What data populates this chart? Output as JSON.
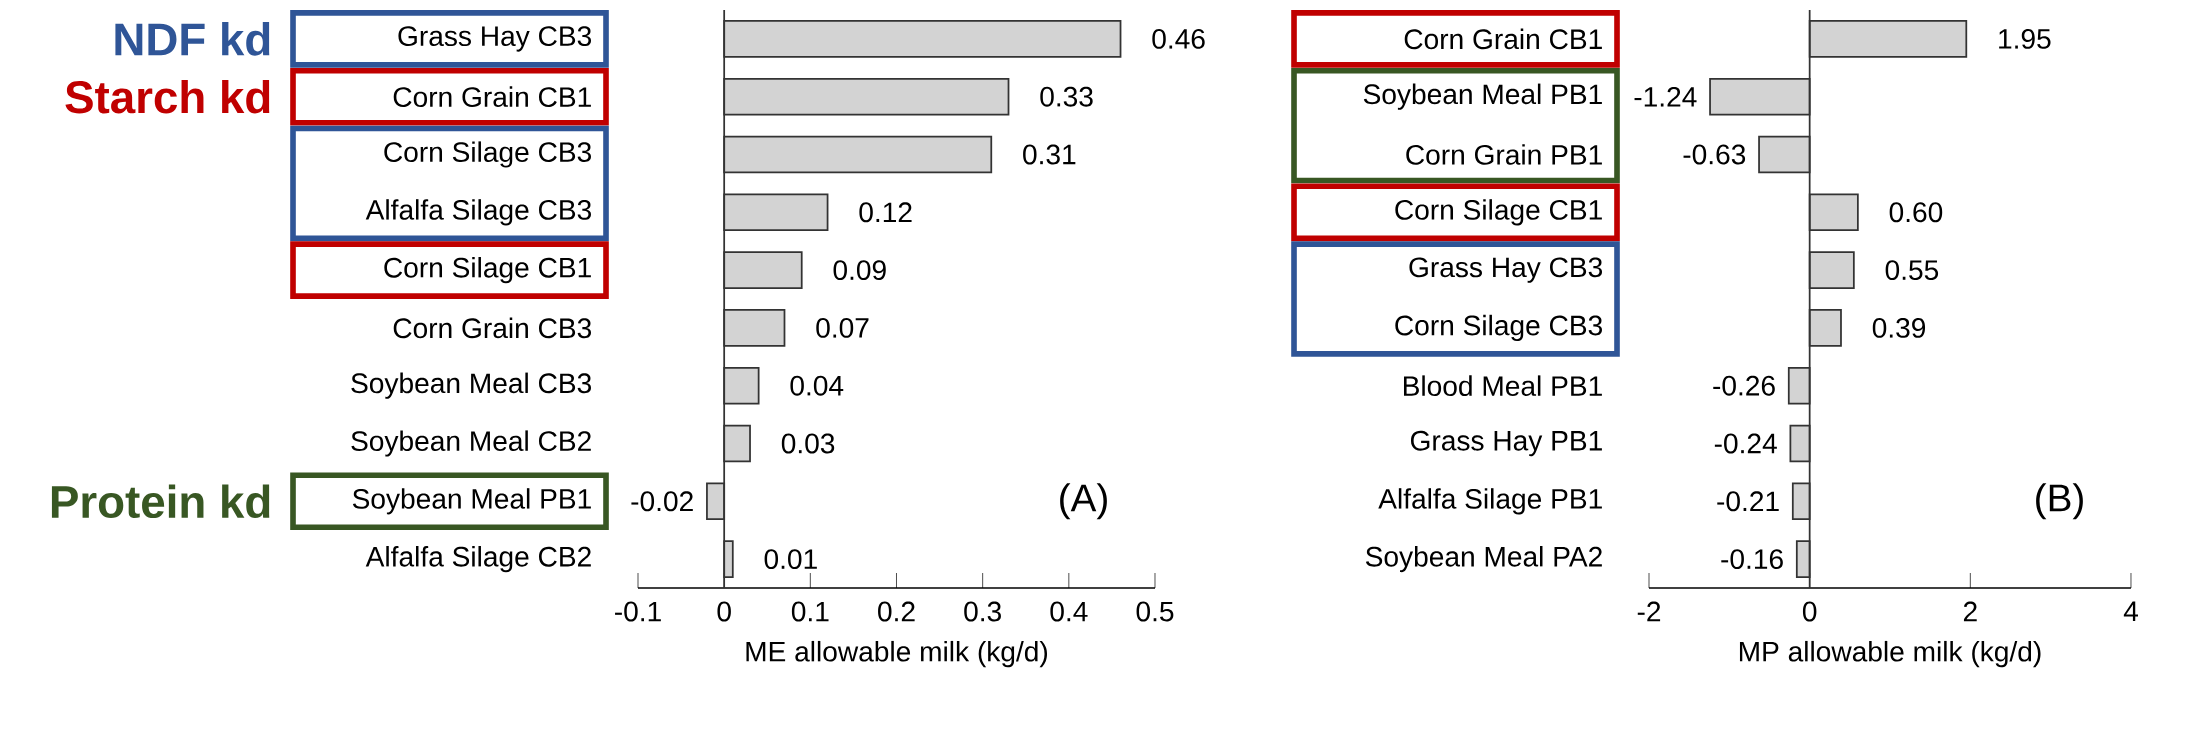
{
  "chart_data": [
    {
      "type": "bar",
      "orientation": "horizontal",
      "xlabel": "ME allowable milk (kg/d)",
      "categories": [
        "Grass Hay CB3",
        "Corn Grain CB1",
        "Corn Silage CB3",
        "Alfalfa Silage CB3",
        "Corn Silage CB1",
        "Corn Grain CB3",
        "Soybean Meal CB3",
        "Soybean Meal CB2",
        "Soybean Meal PB1",
        "Alfalfa Silage CB2"
      ],
      "values": [
        0.46,
        0.33,
        0.31,
        0.12,
        0.09,
        0.07,
        0.04,
        0.03,
        -0.02,
        0.01
      ],
      "value_labels": [
        "0.46",
        "0.33",
        "0.31",
        "0.12",
        "0.09",
        "0.07",
        "0.04",
        "0.03",
        "-0.02",
        "0.01"
      ],
      "color": "#d3d3d3",
      "xlim": [
        -0.1,
        0.5
      ],
      "xticks": [
        -0.1,
        0,
        0.1,
        0.2,
        0.3,
        0.4,
        0.5
      ],
      "ref_lines": [
        {
          "axis": "x",
          "value": 0
        }
      ],
      "annotations": [
        "(A)",
        "NDF kd",
        "Starch kd",
        "Protein kd"
      ]
    },
    {
      "type": "bar",
      "orientation": "horizontal",
      "xlabel": "MP allowable milk (kg/d)",
      "categories": [
        "Corn Grain CB1",
        "Soybean Meal PB1",
        "Corn Grain PB1",
        "Corn Silage CB1",
        "Grass Hay CB3",
        "Corn Silage CB3",
        "Blood Meal PB1",
        "Grass Hay PB1",
        "Alfalfa Silage PB1",
        "Soybean Meal PA2"
      ],
      "values": [
        1.95,
        -1.24,
        -0.63,
        0.6,
        0.55,
        0.39,
        -0.26,
        -0.24,
        -0.21,
        -0.16
      ],
      "value_labels": [
        "1.95",
        "-1.24",
        "-0.63",
        "0.60",
        "0.55",
        "0.39",
        "-0.26",
        "-0.24",
        "-0.21",
        "-0.16"
      ],
      "color": "#d3d3d3",
      "xlim": [
        -2,
        4
      ],
      "xticks": [
        -2,
        0,
        2,
        4
      ],
      "ref_lines": [
        {
          "axis": "x",
          "value": 0
        }
      ],
      "annotations": [
        "(B)"
      ]
    }
  ]
}
